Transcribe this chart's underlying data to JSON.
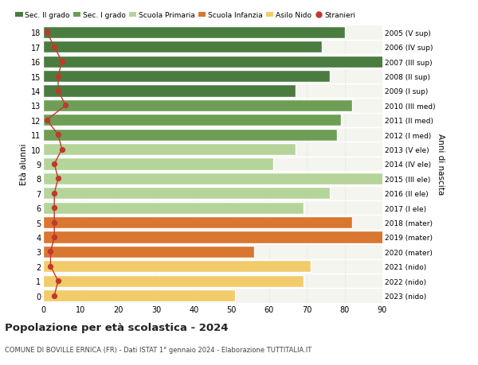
{
  "ages": [
    18,
    17,
    16,
    15,
    14,
    13,
    12,
    11,
    10,
    9,
    8,
    7,
    6,
    5,
    4,
    3,
    2,
    1,
    0
  ],
  "labels_right": [
    "2005 (V sup)",
    "2006 (IV sup)",
    "2007 (III sup)",
    "2008 (II sup)",
    "2009 (I sup)",
    "2010 (III med)",
    "2011 (II med)",
    "2012 (I med)",
    "2013 (V ele)",
    "2014 (IV ele)",
    "2015 (III ele)",
    "2016 (II ele)",
    "2017 (I ele)",
    "2018 (mater)",
    "2019 (mater)",
    "2020 (mater)",
    "2021 (nido)",
    "2022 (nido)",
    "2023 (nido)"
  ],
  "bar_values": [
    80,
    74,
    91,
    76,
    67,
    82,
    79,
    78,
    67,
    61,
    92,
    76,
    69,
    82,
    91,
    56,
    71,
    69,
    51
  ],
  "bar_colors": [
    "#4a7c3f",
    "#4a7c3f",
    "#4a7c3f",
    "#4a7c3f",
    "#4a7c3f",
    "#6e9e55",
    "#6e9e55",
    "#6e9e55",
    "#b5d49a",
    "#b5d49a",
    "#b5d49a",
    "#b5d49a",
    "#b5d49a",
    "#d97630",
    "#d97630",
    "#d97630",
    "#f2cc6a",
    "#f2cc6a",
    "#f2cc6a"
  ],
  "stranieri_values": [
    1,
    3,
    5,
    4,
    4,
    6,
    1,
    4,
    5,
    3,
    4,
    3,
    3,
    3,
    3,
    2,
    2,
    4,
    3
  ],
  "stranieri_color": "#c0392b",
  "ylabel": "Età alunni",
  "ylabel_right": "Anni di nascita",
  "xlim": [
    0,
    90
  ],
  "xticks": [
    0,
    10,
    20,
    30,
    40,
    50,
    60,
    70,
    80,
    90
  ],
  "title": "Popolazione per età scolastica - 2024",
  "subtitle": "COMUNE DI BOVILLE ERNICA (FR) - Dati ISTAT 1° gennaio 2024 - Elaborazione TUTTITALIA.IT",
  "legend_labels": [
    "Sec. II grado",
    "Sec. I grado",
    "Scuola Primaria",
    "Scuola Infanzia",
    "Asilo Nido",
    "Stranieri"
  ],
  "legend_colors": [
    "#4a7c3f",
    "#6e9e55",
    "#b5d49a",
    "#d97630",
    "#f2cc6a",
    "#c0392b"
  ],
  "bar_height": 0.82,
  "background_color": "#ffffff",
  "plot_bg_color": "#f5f5f0",
  "grid_color": "#dddddd"
}
